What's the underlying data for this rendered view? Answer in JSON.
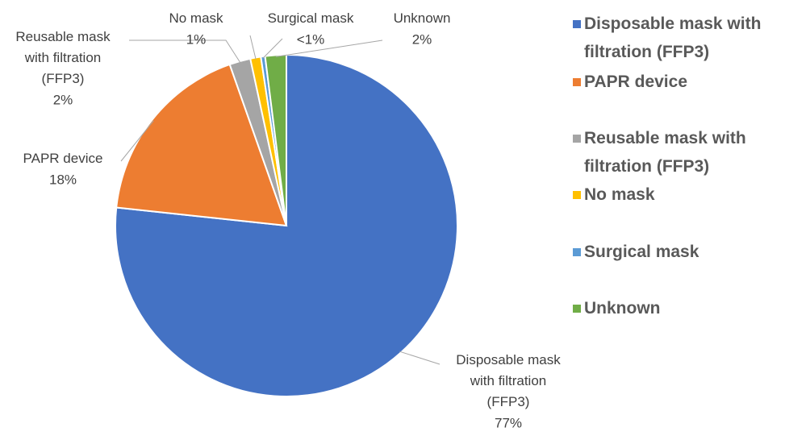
{
  "chart_data": {
    "type": "pie",
    "categories": [
      "Disposable mask with filtration (FFP3)",
      "PAPR device",
      "Reusable mask with filtration (FFP3)",
      "No mask",
      "Surgical mask",
      "Unknown"
    ],
    "values": [
      77,
      18,
      2,
      1,
      0.4,
      2
    ],
    "value_labels": [
      "77%",
      "18%",
      "2%",
      "1%",
      "<1%",
      "2%"
    ],
    "colors": [
      "#4472c4",
      "#ed7d31",
      "#a5a5a5",
      "#ffc000",
      "#5b9bd5",
      "#70ad47"
    ],
    "legend": "right"
  }
}
